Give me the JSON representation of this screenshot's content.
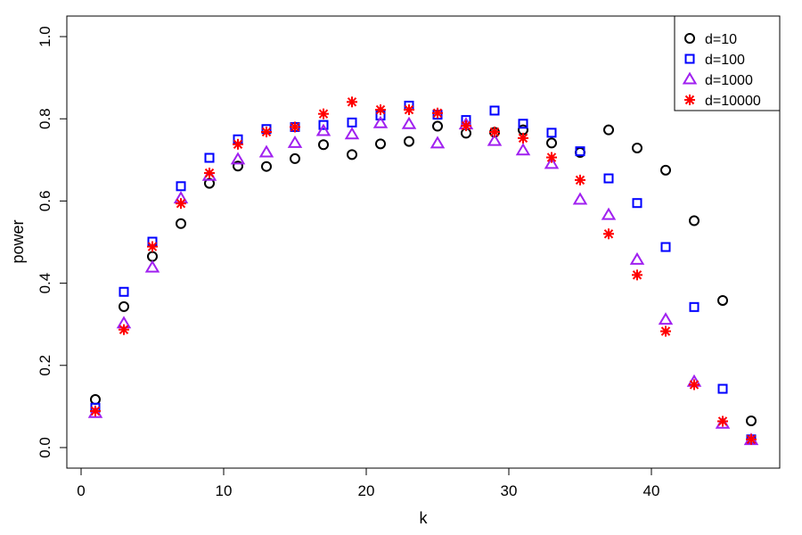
{
  "chart_data": {
    "type": "scatter",
    "xlabel": "k",
    "ylabel": "power",
    "xlim": [
      -1,
      49
    ],
    "ylim": [
      -0.05,
      1.05
    ],
    "x_ticks": [
      "0",
      "10",
      "20",
      "30",
      "40"
    ],
    "y_ticks": [
      "0.0",
      "0.2",
      "0.4",
      "0.6",
      "0.8",
      "1.0"
    ],
    "grid": false,
    "legend_position": "top-right",
    "x": [
      1,
      3,
      5,
      7,
      9,
      11,
      13,
      15,
      17,
      19,
      21,
      23,
      25,
      27,
      29,
      31,
      33,
      35,
      37,
      39,
      41,
      43,
      45,
      47
    ],
    "series": [
      {
        "name": "d=10",
        "marker": "circle",
        "color": "#000000",
        "values": [
          0.117,
          0.343,
          0.465,
          0.545,
          0.643,
          0.685,
          0.684,
          0.703,
          0.737,
          0.713,
          0.739,
          0.745,
          0.782,
          0.765,
          0.767,
          0.773,
          0.741,
          0.718,
          0.773,
          0.729,
          0.675,
          0.552,
          0.358,
          0.065
        ]
      },
      {
        "name": "d=100",
        "marker": "square",
        "color": "#0000ff",
        "values": [
          0.097,
          0.379,
          0.501,
          0.636,
          0.705,
          0.75,
          0.775,
          0.78,
          0.785,
          0.791,
          0.808,
          0.832,
          0.81,
          0.797,
          0.82,
          0.788,
          0.766,
          0.721,
          0.655,
          0.595,
          0.488,
          0.342,
          0.143,
          0.02
        ]
      },
      {
        "name": "d=1000",
        "marker": "triangle",
        "color": "#a020f0",
        "values": [
          0.084,
          0.302,
          0.438,
          0.606,
          0.661,
          0.701,
          0.718,
          0.741,
          0.77,
          0.762,
          0.789,
          0.787,
          0.74,
          0.786,
          0.746,
          0.723,
          0.69,
          0.603,
          0.566,
          0.457,
          0.311,
          0.16,
          0.058,
          0.018
        ]
      },
      {
        "name": "d=10000",
        "marker": "asterisk",
        "color": "#ff0000",
        "values": [
          0.089,
          0.287,
          0.489,
          0.594,
          0.668,
          0.738,
          0.768,
          0.78,
          0.812,
          0.841,
          0.822,
          0.822,
          0.814,
          0.783,
          0.768,
          0.753,
          0.706,
          0.651,
          0.52,
          0.42,
          0.283,
          0.153,
          0.064,
          0.02
        ]
      }
    ]
  }
}
